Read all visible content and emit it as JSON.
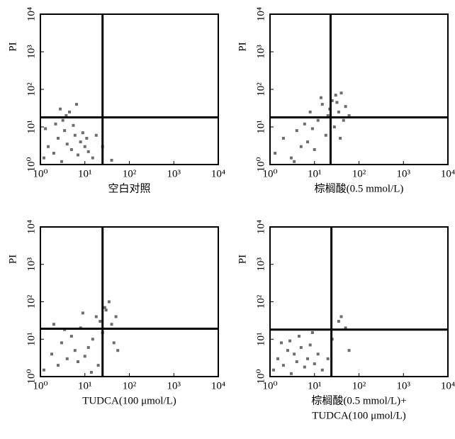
{
  "chart_data": [
    {
      "type": "scatter",
      "xlabel": [
        "空白对照"
      ],
      "ylabel": "PI",
      "log_x": true,
      "log_y": true,
      "color": "#6d6d6d",
      "xlim": [
        1,
        10000
      ],
      "ylim": [
        1,
        10000
      ],
      "xticks": [
        {
          "value": 1,
          "label": "10⁰"
        },
        {
          "value": 10,
          "label": "10¹"
        },
        {
          "value": 100,
          "label": "10²"
        },
        {
          "value": 1000,
          "label": "10³"
        },
        {
          "value": 10000,
          "label": "10⁴"
        }
      ],
      "yticks": [
        {
          "value": 1,
          "label": "10⁰"
        },
        {
          "value": 10,
          "label": "10¹"
        },
        {
          "value": 100,
          "label": "10²"
        },
        {
          "value": 1000,
          "label": "10³"
        },
        {
          "value": 10000,
          "label": "10⁴"
        }
      ],
      "quadrant_x": 25,
      "quadrant_y": 18,
      "x": [
        1.2,
        1.5,
        2,
        2.5,
        3,
        3.5,
        4,
        5,
        6,
        7,
        8,
        10,
        12,
        15,
        1.3,
        2.2,
        3.2,
        4.5,
        6.5,
        9,
        11,
        2.8,
        3.8,
        5.5,
        18,
        25,
        40
      ],
      "y": [
        1.5,
        3,
        2,
        5,
        1.2,
        8,
        3.5,
        2.5,
        6,
        1.8,
        4,
        3,
        2.2,
        1.5,
        9,
        12,
        15,
        25,
        40,
        7,
        5,
        30,
        20,
        11,
        6,
        3,
        1.3
      ]
    },
    {
      "type": "scatter",
      "xlabel": [
        "棕榈酸(0.5 mmol/L)"
      ],
      "ylabel": "PI",
      "log_x": true,
      "log_y": true,
      "color": "#6d6d6d",
      "xlim": [
        1,
        10000
      ],
      "ylim": [
        1,
        10000
      ],
      "xticks": [
        {
          "value": 1,
          "label": "10⁰"
        },
        {
          "value": 10,
          "label": "10¹"
        },
        {
          "value": 100,
          "label": "10²"
        },
        {
          "value": 1000,
          "label": "10³"
        },
        {
          "value": 10000,
          "label": "10⁴"
        }
      ],
      "yticks": [
        {
          "value": 1,
          "label": "10⁰"
        },
        {
          "value": 10,
          "label": "10¹"
        },
        {
          "value": 100,
          "label": "10²"
        },
        {
          "value": 1000,
          "label": "10³"
        },
        {
          "value": 10000,
          "label": "10⁴"
        }
      ],
      "quadrant_x": 23,
      "quadrant_y": 18,
      "x": [
        1.3,
        2,
        3,
        4,
        5,
        6,
        7,
        8,
        10,
        12,
        15,
        18,
        20,
        22,
        25,
        28,
        30,
        35,
        40,
        45,
        50,
        60,
        3.5,
        9,
        14,
        32,
        38
      ],
      "y": [
        2,
        5,
        1.5,
        8,
        3,
        12,
        4,
        25,
        2.5,
        15,
        40,
        6,
        20,
        30,
        50,
        10,
        70,
        25,
        80,
        15,
        35,
        20,
        1.2,
        9,
        60,
        45,
        5
      ]
    },
    {
      "type": "scatter",
      "xlabel": [
        "TUDCA(100 μmol/L)"
      ],
      "ylabel": "PI",
      "log_x": true,
      "log_y": true,
      "color": "#6d6d6d",
      "xlim": [
        1,
        10000
      ],
      "ylim": [
        1,
        10000
      ],
      "xticks": [
        {
          "value": 1,
          "label": "10⁰"
        },
        {
          "value": 10,
          "label": "10¹"
        },
        {
          "value": 100,
          "label": "10²"
        },
        {
          "value": 1000,
          "label": "10³"
        },
        {
          "value": 10000,
          "label": "10⁴"
        }
      ],
      "yticks": [
        {
          "value": 1,
          "label": "10⁰"
        },
        {
          "value": 10,
          "label": "10¹"
        },
        {
          "value": 100,
          "label": "10²"
        },
        {
          "value": 1000,
          "label": "10³"
        },
        {
          "value": 10000,
          "label": "10⁴"
        }
      ],
      "quadrant_x": 25,
      "quadrant_y": 19,
      "x": [
        1.2,
        1.8,
        2.5,
        3,
        4,
        5,
        6,
        7,
        8,
        10,
        12,
        15,
        18,
        20,
        22,
        25,
        30,
        35,
        40,
        45,
        50,
        3.5,
        9,
        14,
        28,
        55,
        2
      ],
      "y": [
        1.5,
        4,
        2,
        8,
        3,
        12,
        5,
        2.5,
        20,
        3.5,
        6,
        10,
        40,
        2,
        30,
        15,
        60,
        100,
        25,
        8,
        40,
        18,
        50,
        1.3,
        70,
        5,
        25
      ]
    },
    {
      "type": "scatter",
      "xlabel": [
        "棕榈酸(0.5 mmol/L)+",
        "TUDCA(100 μmol/L)"
      ],
      "ylabel": "PI",
      "log_x": true,
      "log_y": true,
      "color": "#6d6d6d",
      "xlim": [
        1,
        10000
      ],
      "ylim": [
        1,
        10000
      ],
      "xticks": [
        {
          "value": 1,
          "label": "10⁰"
        },
        {
          "value": 10,
          "label": "10¹"
        },
        {
          "value": 100,
          "label": "10²"
        },
        {
          "value": 1000,
          "label": "10³"
        },
        {
          "value": 10000,
          "label": "10⁴"
        }
      ],
      "yticks": [
        {
          "value": 1,
          "label": "10⁰"
        },
        {
          "value": 10,
          "label": "10¹"
        },
        {
          "value": 100,
          "label": "10²"
        },
        {
          "value": 1000,
          "label": "10³"
        },
        {
          "value": 10000,
          "label": "10⁴"
        }
      ],
      "quadrant_x": 24,
      "quadrant_y": 18,
      "x": [
        1.2,
        1.5,
        2,
        2.5,
        3,
        3.5,
        4,
        5,
        6,
        7,
        8,
        10,
        12,
        15,
        20,
        25,
        40,
        50,
        2.8,
        4.5,
        9,
        1.8,
        60,
        35
      ],
      "y": [
        1.5,
        3,
        2,
        5,
        1.2,
        4,
        2.5,
        6,
        1.8,
        3,
        7,
        2.2,
        4,
        1.5,
        3,
        10,
        40,
        20,
        9,
        12,
        15,
        8,
        5,
        30
      ]
    }
  ]
}
